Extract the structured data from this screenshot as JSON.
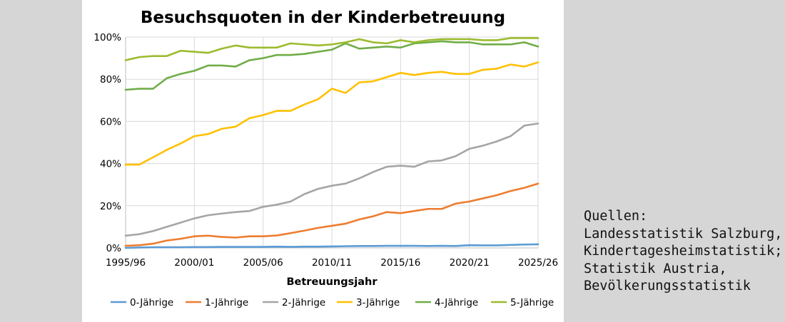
{
  "chart_data": {
    "type": "line",
    "title": "Besuchsquoten in der Kinderbetreuung",
    "xlabel": "Betreuungsjahr",
    "ylabel": "",
    "x_ticks": [
      "1995/96",
      "2000/01",
      "2005/06",
      "2010/11",
      "2015/16",
      "2020/21",
      "2025/26"
    ],
    "y_ticks": [
      "0%",
      "20%",
      "40%",
      "60%",
      "80%",
      "100%"
    ],
    "ylim": [
      0,
      100
    ],
    "grid": true,
    "legend_position": "bottom",
    "x": [
      "1995/96",
      "1996/97",
      "1997/98",
      "1998/99",
      "1999/00",
      "2000/01",
      "2001/02",
      "2002/03",
      "2003/04",
      "2004/05",
      "2005/06",
      "2006/07",
      "2007/08",
      "2008/09",
      "2009/10",
      "2010/11",
      "2011/12",
      "2012/13",
      "2013/14",
      "2014/15",
      "2015/16",
      "2016/17",
      "2017/18",
      "2018/19",
      "2019/20",
      "2020/21",
      "2021/22",
      "2022/23",
      "2023/24",
      "2024/25",
      "2025/26"
    ],
    "series": [
      {
        "name": "0-Jährige",
        "color": "#5b9bd5",
        "values": [
          0,
          0.2,
          0.3,
          0.3,
          0.3,
          0.4,
          0.4,
          0.5,
          0.5,
          0.5,
          0.5,
          0.6,
          0.5,
          0.6,
          0.6,
          0.7,
          0.8,
          0.9,
          0.9,
          1,
          1,
          1,
          0.9,
          1,
          0.9,
          1.3,
          1.2,
          1.2,
          1.4,
          1.6,
          1.7
        ]
      },
      {
        "name": "1-Jährige",
        "color": "#ed7d31",
        "values": [
          1,
          1.3,
          2,
          3.5,
          4.3,
          5.5,
          5.8,
          5.2,
          4.9,
          5.5,
          5.5,
          5.9,
          7,
          8.2,
          9.5,
          10.5,
          11.5,
          13.5,
          15,
          17,
          16.5,
          17.5,
          18.5,
          18.5,
          21,
          22,
          23.5,
          25,
          27,
          28.5,
          30.5
        ]
      },
      {
        "name": "2-Jährige",
        "color": "#a5a5a5",
        "values": [
          5.8,
          6.5,
          8,
          10,
          12,
          14,
          15.5,
          16.3,
          17,
          17.5,
          19.5,
          20.5,
          22,
          25.5,
          28,
          29.5,
          30.5,
          33,
          36,
          38.5,
          39,
          38.5,
          41,
          41.5,
          43.5,
          47,
          48.5,
          50.5,
          53,
          58,
          59
        ]
      },
      {
        "name": "3-Jährige",
        "color": "#ffc000",
        "values": [
          39.5,
          39.5,
          43,
          46.5,
          49.5,
          53,
          54,
          56.5,
          57.5,
          61.5,
          63,
          65,
          65,
          68,
          70.5,
          75.5,
          73.5,
          78.5,
          79,
          81,
          83,
          82,
          83,
          83.5,
          82.5,
          82.5,
          84.5,
          85,
          87,
          86,
          88
        ]
      },
      {
        "name": "4-Jährige",
        "color": "#70ad47",
        "values": [
          75,
          75.5,
          75.5,
          80.5,
          82.5,
          84,
          86.5,
          86.5,
          86,
          89,
          90,
          91.5,
          91.5,
          92,
          93,
          94,
          97,
          94.5,
          95,
          95.5,
          95,
          97,
          97.5,
          98,
          97.5,
          97.5,
          96.5,
          96.5,
          96.5,
          97.5,
          95.5
        ]
      },
      {
        "name": "5-Jährige",
        "color": "#9cbb2e",
        "values": [
          89,
          90.5,
          91,
          91,
          93.5,
          93,
          92.5,
          94.5,
          96,
          95,
          95,
          95,
          97,
          96.5,
          96,
          96.5,
          97.5,
          99,
          97.5,
          97,
          98.5,
          97.5,
          98.5,
          99,
          99,
          99,
          98.5,
          98.5,
          99.5,
          99.5,
          99.5
        ]
      }
    ]
  },
  "sources": {
    "lines": [
      "Quellen:",
      "Landesstatistik Salzburg,",
      "Kindertagesheimstatistik;",
      "Statistik Austria,",
      "Bevölkerungsstatistik"
    ]
  }
}
